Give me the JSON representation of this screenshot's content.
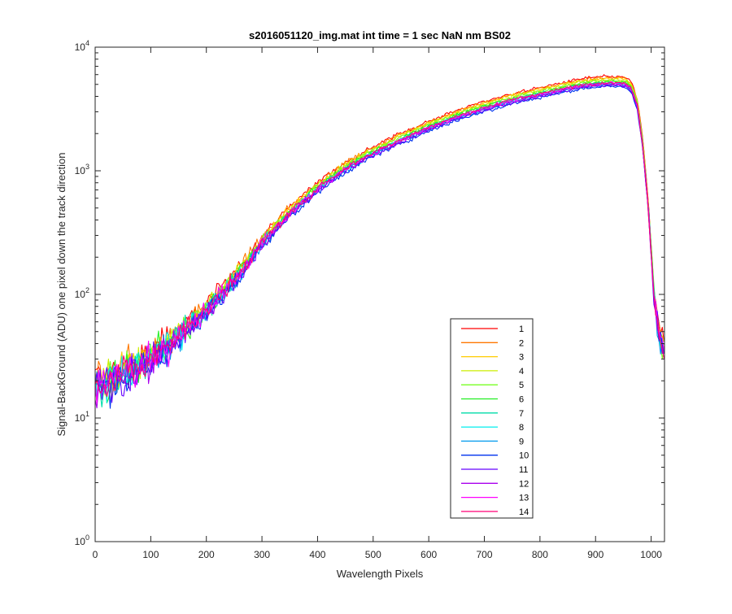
{
  "chart_data": {
    "type": "line",
    "title": "s2016051120_img.mat int time = 1 sec  NaN nm BS02",
    "xlabel": "Wavelength Pixels",
    "ylabel": "Signal-BackGround (ADU) one pixel down the track direction",
    "xlim": [
      0,
      1024
    ],
    "ylim": [
      1,
      10000
    ],
    "yscale": "log",
    "grid": false,
    "legend_position": "lower-right",
    "x_ticks": [
      "0",
      "100",
      "200",
      "300",
      "400",
      "500",
      "600",
      "700",
      "800",
      "900",
      "1000"
    ],
    "y_ticks": [
      {
        "base": "10",
        "exp": "0"
      },
      {
        "base": "10",
        "exp": "1"
      },
      {
        "base": "10",
        "exp": "2"
      },
      {
        "base": "10",
        "exp": "3"
      },
      {
        "base": "10",
        "exp": "4"
      }
    ],
    "x": [
      0,
      20,
      40,
      60,
      80,
      100,
      120,
      140,
      160,
      180,
      200,
      250,
      300,
      350,
      400,
      450,
      500,
      550,
      600,
      650,
      700,
      750,
      800,
      850,
      880,
      900,
      920,
      940,
      955,
      965,
      975,
      985,
      995,
      1005,
      1015,
      1024
    ],
    "mean_profile": [
      18,
      20,
      22,
      24,
      26,
      30,
      35,
      42,
      52,
      62,
      75,
      130,
      260,
      460,
      720,
      1050,
      1400,
      1800,
      2250,
      2750,
      3250,
      3750,
      4200,
      4700,
      5000,
      5100,
      5150,
      5150,
      5050,
      4600,
      3400,
      1600,
      500,
      100,
      45,
      35
    ],
    "series": [
      {
        "name": "1",
        "color": "#ff0000",
        "scale": 1.12
      },
      {
        "name": "2",
        "color": "#ff7700",
        "scale": 1.1
      },
      {
        "name": "3",
        "color": "#ffcc00",
        "scale": 1.08
      },
      {
        "name": "4",
        "color": "#ccee00",
        "scale": 1.06
      },
      {
        "name": "5",
        "color": "#77ff22",
        "scale": 1.04
      },
      {
        "name": "6",
        "color": "#22ee22",
        "scale": 1.02
      },
      {
        "name": "7",
        "color": "#00ddaa",
        "scale": 1.0
      },
      {
        "name": "8",
        "color": "#00eeee",
        "scale": 0.98
      },
      {
        "name": "9",
        "color": "#0099ee",
        "scale": 0.96
      },
      {
        "name": "10",
        "color": "#0033ee",
        "scale": 0.93
      },
      {
        "name": "11",
        "color": "#6600ff",
        "scale": 0.95
      },
      {
        "name": "12",
        "color": "#aa00ee",
        "scale": 0.97
      },
      {
        "name": "13",
        "color": "#ff00ff",
        "scale": 0.99
      },
      {
        "name": "14",
        "color": "#ff0077",
        "scale": 1.0
      }
    ]
  }
}
